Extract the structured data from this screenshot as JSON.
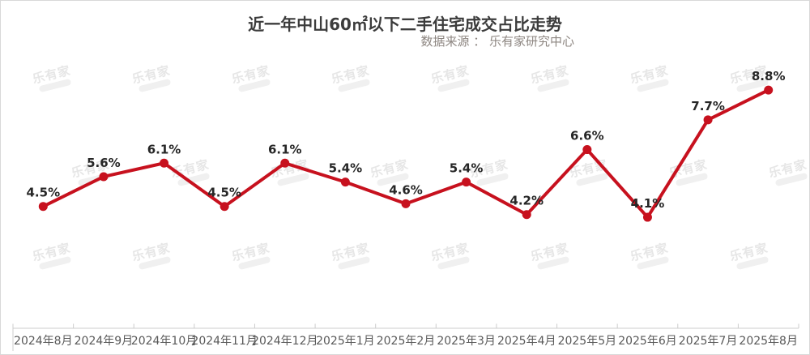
{
  "chart_data": {
    "type": "line",
    "title": "近一年中山60㎡以下二手住宅成交占比走势",
    "subtitle": "数据来源 ： 乐有家研究中心",
    "categories": [
      "2024年8月",
      "2024年9月",
      "2024年10月",
      "2024年11月",
      "2024年12月",
      "2025年1月",
      "2025年2月",
      "2025年3月",
      "2025年4月",
      "2025年5月",
      "2025年6月",
      "2025年7月",
      "2025年8月"
    ],
    "values": [
      4.5,
      5.6,
      6.1,
      4.5,
      6.1,
      5.4,
      4.6,
      5.4,
      4.2,
      6.6,
      4.1,
      7.7,
      8.8
    ],
    "point_labels": [
      "4.5%",
      "5.6%",
      "6.1%",
      "4.5%",
      "6.1%",
      "5.4%",
      "4.6%",
      "5.4%",
      "4.2%",
      "6.6%",
      "4.1%",
      "7.7%",
      "8.8%"
    ],
    "unit": "%",
    "ylim": [
      0,
      10
    ],
    "grid": false,
    "legend": "none",
    "xlabel": "",
    "ylabel": "",
    "colors": {
      "line": "#c7111e",
      "point": "#c7111e",
      "data_label": "#262626",
      "axis_line": "#cccccc",
      "axis_label": "#595959"
    }
  },
  "watermark": {
    "text": "乐有家"
  }
}
